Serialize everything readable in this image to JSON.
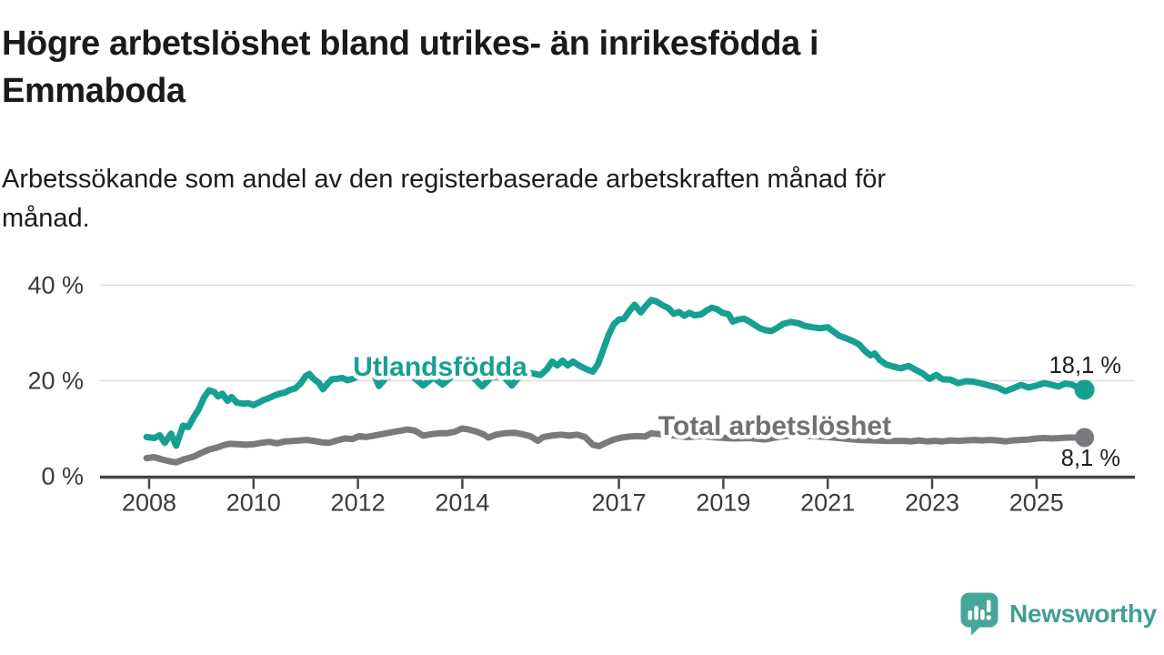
{
  "header": {
    "title_line1": "Högre arbetslöshet bland utrikes- än inrikesfödda i",
    "title_line2": "Emmaboda",
    "subtitle_line1": "Arbetssökande som andel av den registerbaserade arbetskraften månad för",
    "subtitle_line2": "månad."
  },
  "branding": {
    "name": "Newsworthy",
    "logo_icon": "speech-bubble-bar-chart-exclamation",
    "icon_color": "#47a69b",
    "text_color": "#3f9e95"
  },
  "colors": {
    "utlandsfodda_line": "#16a092",
    "total_line": "#7a7a7e",
    "total_label": "#717175",
    "grid": "#dcdcdc",
    "axis": "#454545",
    "tick_text": "#3a3a3a",
    "value_label_text": "#1d1d1d",
    "background": "#ffffff"
  },
  "chart_data": {
    "type": "line",
    "title": "Högre arbetslöshet bland utrikes- än inrikesfödda i Emmaboda",
    "subtitle": "Arbetssökande som andel av den registerbaserade arbetskraften månad för månad.",
    "x_axis": {
      "ticks": [
        2008,
        2010,
        2012,
        2014,
        2017,
        2019,
        2021,
        2023,
        2025
      ],
      "tick_labels": [
        "2008",
        "2010",
        "2012",
        "2014",
        "2017",
        "2019",
        "2021",
        "2023",
        "2025"
      ],
      "range": [
        2007.1,
        2026.8
      ]
    },
    "y_axis": {
      "unit": "%",
      "ticks": [
        0,
        20,
        40
      ],
      "tick_labels": [
        "0 %",
        "20 %",
        "40 %"
      ],
      "range": [
        0,
        43
      ]
    },
    "grid": "horizontal",
    "legend_position": "inline-labels",
    "series": [
      {
        "name": "Utlandsfödda",
        "color": "#16a092",
        "end_value": 18.1,
        "end_label": "18,1 %",
        "points": [
          [
            2007.95,
            8.2
          ],
          [
            2008.1,
            8.0
          ],
          [
            2008.2,
            8.6
          ],
          [
            2008.3,
            7.0
          ],
          [
            2008.42,
            8.9
          ],
          [
            2008.52,
            6.4
          ],
          [
            2008.65,
            10.6
          ],
          [
            2008.75,
            10.3
          ],
          [
            2008.85,
            12.3
          ],
          [
            2008.95,
            14.0
          ],
          [
            2009.05,
            16.5
          ],
          [
            2009.15,
            18.0
          ],
          [
            2009.25,
            17.6
          ],
          [
            2009.32,
            16.7
          ],
          [
            2009.4,
            17.3
          ],
          [
            2009.5,
            15.8
          ],
          [
            2009.58,
            16.6
          ],
          [
            2009.68,
            15.4
          ],
          [
            2009.8,
            15.2
          ],
          [
            2009.9,
            15.3
          ],
          [
            2010.0,
            14.9
          ],
          [
            2010.1,
            15.4
          ],
          [
            2010.18,
            15.9
          ],
          [
            2010.28,
            16.3
          ],
          [
            2010.4,
            16.9
          ],
          [
            2010.5,
            17.3
          ],
          [
            2010.6,
            17.5
          ],
          [
            2010.7,
            18.1
          ],
          [
            2010.8,
            18.4
          ],
          [
            2010.9,
            19.4
          ],
          [
            2011.0,
            21.0
          ],
          [
            2011.07,
            21.4
          ],
          [
            2011.15,
            20.4
          ],
          [
            2011.25,
            19.6
          ],
          [
            2011.33,
            18.2
          ],
          [
            2011.42,
            19.4
          ],
          [
            2011.5,
            20.3
          ],
          [
            2011.6,
            20.4
          ],
          [
            2011.7,
            20.6
          ],
          [
            2011.8,
            20.1
          ],
          [
            2011.9,
            20.4
          ],
          [
            2012.0,
            21.0
          ],
          [
            2012.1,
            21.9
          ],
          [
            2012.2,
            22.3
          ],
          [
            2012.3,
            21.6
          ],
          [
            2012.4,
            18.9
          ],
          [
            2012.55,
            20.8
          ],
          [
            2012.7,
            21.0
          ],
          [
            2012.9,
            21.3
          ],
          [
            2013.05,
            20.9
          ],
          [
            2013.25,
            19.0
          ],
          [
            2013.45,
            20.7
          ],
          [
            2013.62,
            19.2
          ],
          [
            2013.8,
            20.9
          ],
          [
            2014.0,
            21.3
          ],
          [
            2014.2,
            20.8
          ],
          [
            2014.38,
            18.8
          ],
          [
            2014.55,
            20.7
          ],
          [
            2014.78,
            21.0
          ],
          [
            2014.95,
            19.0
          ],
          [
            2015.1,
            21.0
          ],
          [
            2015.3,
            21.6
          ],
          [
            2015.5,
            21.2
          ],
          [
            2015.62,
            22.4
          ],
          [
            2015.72,
            24.0
          ],
          [
            2015.82,
            23.2
          ],
          [
            2015.92,
            24.2
          ],
          [
            2016.02,
            23.2
          ],
          [
            2016.12,
            24.0
          ],
          [
            2016.25,
            23.1
          ],
          [
            2016.38,
            22.4
          ],
          [
            2016.5,
            21.9
          ],
          [
            2016.6,
            23.5
          ],
          [
            2016.7,
            26.5
          ],
          [
            2016.8,
            29.5
          ],
          [
            2016.9,
            31.8
          ],
          [
            2017.0,
            32.8
          ],
          [
            2017.1,
            33.0
          ],
          [
            2017.2,
            34.6
          ],
          [
            2017.3,
            35.9
          ],
          [
            2017.42,
            34.3
          ],
          [
            2017.52,
            35.7
          ],
          [
            2017.62,
            36.9
          ],
          [
            2017.72,
            36.6
          ],
          [
            2017.82,
            35.9
          ],
          [
            2017.95,
            35.2
          ],
          [
            2018.05,
            34.0
          ],
          [
            2018.15,
            34.4
          ],
          [
            2018.25,
            33.6
          ],
          [
            2018.35,
            34.2
          ],
          [
            2018.45,
            33.7
          ],
          [
            2018.58,
            33.9
          ],
          [
            2018.68,
            34.7
          ],
          [
            2018.78,
            35.3
          ],
          [
            2018.88,
            35.0
          ],
          [
            2018.98,
            34.2
          ],
          [
            2019.1,
            33.9
          ],
          [
            2019.18,
            32.4
          ],
          [
            2019.28,
            32.8
          ],
          [
            2019.4,
            33.0
          ],
          [
            2019.5,
            32.4
          ],
          [
            2019.6,
            31.7
          ],
          [
            2019.7,
            31.0
          ],
          [
            2019.8,
            30.6
          ],
          [
            2019.92,
            30.4
          ],
          [
            2020.02,
            31.0
          ],
          [
            2020.15,
            31.9
          ],
          [
            2020.3,
            32.3
          ],
          [
            2020.45,
            32.0
          ],
          [
            2020.55,
            31.5
          ],
          [
            2020.7,
            31.2
          ],
          [
            2020.85,
            31.0
          ],
          [
            2021.0,
            31.2
          ],
          [
            2021.1,
            30.4
          ],
          [
            2021.22,
            29.4
          ],
          [
            2021.35,
            28.9
          ],
          [
            2021.48,
            28.3
          ],
          [
            2021.6,
            27.6
          ],
          [
            2021.72,
            26.2
          ],
          [
            2021.82,
            25.3
          ],
          [
            2021.9,
            25.7
          ],
          [
            2022.0,
            24.3
          ],
          [
            2022.12,
            23.4
          ],
          [
            2022.25,
            23.0
          ],
          [
            2022.4,
            22.6
          ],
          [
            2022.55,
            23.1
          ],
          [
            2022.68,
            22.3
          ],
          [
            2022.82,
            21.5
          ],
          [
            2022.95,
            20.4
          ],
          [
            2023.08,
            21.2
          ],
          [
            2023.2,
            20.3
          ],
          [
            2023.35,
            20.2
          ],
          [
            2023.5,
            19.5
          ],
          [
            2023.65,
            19.9
          ],
          [
            2023.8,
            19.8
          ],
          [
            2023.95,
            19.4
          ],
          [
            2024.1,
            19.0
          ],
          [
            2024.25,
            18.6
          ],
          [
            2024.4,
            17.8
          ],
          [
            2024.55,
            18.4
          ],
          [
            2024.7,
            19.1
          ],
          [
            2024.85,
            18.6
          ],
          [
            2025.0,
            19.0
          ],
          [
            2025.15,
            19.5
          ],
          [
            2025.3,
            19.1
          ],
          [
            2025.42,
            18.8
          ],
          [
            2025.55,
            19.4
          ],
          [
            2025.68,
            19.2
          ],
          [
            2025.8,
            18.5
          ],
          [
            2025.92,
            18.1
          ]
        ]
      },
      {
        "name": "Total arbetslöshet",
        "color": "#7a7a7e",
        "end_value": 8.1,
        "end_label": "8,1 %",
        "points": [
          [
            2007.95,
            3.8
          ],
          [
            2008.1,
            4.0
          ],
          [
            2008.25,
            3.5
          ],
          [
            2008.4,
            3.1
          ],
          [
            2008.52,
            2.9
          ],
          [
            2008.68,
            3.6
          ],
          [
            2008.85,
            4.1
          ],
          [
            2009.0,
            4.9
          ],
          [
            2009.15,
            5.6
          ],
          [
            2009.3,
            6.0
          ],
          [
            2009.45,
            6.6
          ],
          [
            2009.55,
            6.8
          ],
          [
            2009.7,
            6.7
          ],
          [
            2009.85,
            6.6
          ],
          [
            2010.0,
            6.7
          ],
          [
            2010.15,
            7.0
          ],
          [
            2010.3,
            7.2
          ],
          [
            2010.45,
            6.9
          ],
          [
            2010.6,
            7.3
          ],
          [
            2010.78,
            7.4
          ],
          [
            2010.9,
            7.5
          ],
          [
            2011.02,
            7.6
          ],
          [
            2011.15,
            7.4
          ],
          [
            2011.3,
            7.1
          ],
          [
            2011.45,
            7.0
          ],
          [
            2011.6,
            7.5
          ],
          [
            2011.75,
            7.9
          ],
          [
            2011.9,
            7.8
          ],
          [
            2012.02,
            8.4
          ],
          [
            2012.15,
            8.2
          ],
          [
            2012.3,
            8.5
          ],
          [
            2012.45,
            8.8
          ],
          [
            2012.6,
            9.1
          ],
          [
            2012.8,
            9.5
          ],
          [
            2012.95,
            9.8
          ],
          [
            2013.1,
            9.5
          ],
          [
            2013.25,
            8.5
          ],
          [
            2013.4,
            8.8
          ],
          [
            2013.55,
            9.0
          ],
          [
            2013.7,
            9.0
          ],
          [
            2013.85,
            9.3
          ],
          [
            2014.0,
            10.0
          ],
          [
            2014.12,
            9.8
          ],
          [
            2014.25,
            9.4
          ],
          [
            2014.4,
            8.8
          ],
          [
            2014.5,
            8.1
          ],
          [
            2014.65,
            8.7
          ],
          [
            2014.8,
            9.0
          ],
          [
            2015.0,
            9.1
          ],
          [
            2015.15,
            8.8
          ],
          [
            2015.3,
            8.4
          ],
          [
            2015.45,
            7.4
          ],
          [
            2015.55,
            8.2
          ],
          [
            2015.7,
            8.5
          ],
          [
            2015.9,
            8.7
          ],
          [
            2016.05,
            8.5
          ],
          [
            2016.2,
            8.7
          ],
          [
            2016.35,
            8.2
          ],
          [
            2016.5,
            6.6
          ],
          [
            2016.62,
            6.3
          ],
          [
            2016.75,
            7.0
          ],
          [
            2016.9,
            7.7
          ],
          [
            2017.05,
            8.1
          ],
          [
            2017.2,
            8.3
          ],
          [
            2017.35,
            8.4
          ],
          [
            2017.5,
            8.3
          ],
          [
            2017.62,
            9.0
          ],
          [
            2017.8,
            8.8
          ],
          [
            2018.0,
            8.6
          ],
          [
            2018.3,
            8.2
          ],
          [
            2018.6,
            8.4
          ],
          [
            2018.9,
            8.1
          ],
          [
            2019.2,
            7.9
          ],
          [
            2019.5,
            8.0
          ],
          [
            2019.8,
            7.7
          ],
          [
            2020.1,
            8.3
          ],
          [
            2020.4,
            8.6
          ],
          [
            2020.7,
            8.4
          ],
          [
            2021.0,
            8.2
          ],
          [
            2021.3,
            7.9
          ],
          [
            2021.6,
            7.6
          ],
          [
            2021.9,
            7.5
          ],
          [
            2022.1,
            7.4
          ],
          [
            2022.3,
            7.4
          ],
          [
            2022.45,
            7.4
          ],
          [
            2022.6,
            7.3
          ],
          [
            2022.75,
            7.5
          ],
          [
            2022.9,
            7.3
          ],
          [
            2023.05,
            7.4
          ],
          [
            2023.2,
            7.3
          ],
          [
            2023.35,
            7.5
          ],
          [
            2023.5,
            7.4
          ],
          [
            2023.65,
            7.5
          ],
          [
            2023.8,
            7.6
          ],
          [
            2023.95,
            7.5
          ],
          [
            2024.1,
            7.6
          ],
          [
            2024.25,
            7.5
          ],
          [
            2024.4,
            7.3
          ],
          [
            2024.55,
            7.5
          ],
          [
            2024.7,
            7.6
          ],
          [
            2024.85,
            7.7
          ],
          [
            2025.0,
            7.9
          ],
          [
            2025.15,
            8.0
          ],
          [
            2025.3,
            7.9
          ],
          [
            2025.45,
            8.0
          ],
          [
            2025.6,
            8.1
          ],
          [
            2025.75,
            8.1
          ],
          [
            2025.92,
            8.1
          ]
        ]
      }
    ]
  }
}
